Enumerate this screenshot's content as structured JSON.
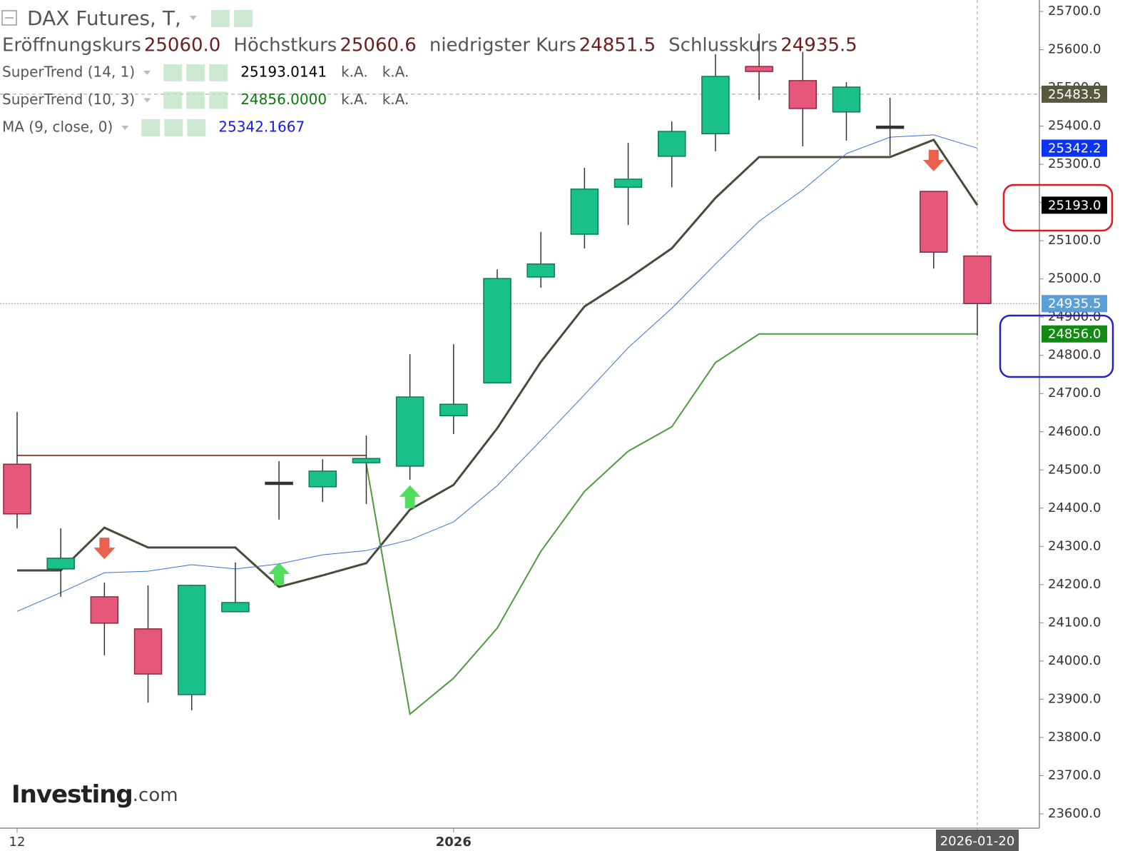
{
  "chart_data": {
    "type": "candlestick",
    "title": "DAX Futures, T,",
    "header": [
      {
        "name": "Eröffnungskurs",
        "value": 25060,
        "label": "25060.0"
      },
      {
        "name": "Höchstkurs",
        "value": 25060.6,
        "label": "25060.6"
      },
      {
        "name": "niedrigster Kurs",
        "value": 24851.5,
        "label": "24851.5"
      },
      {
        "name": "Schlusskurs",
        "value": 24935.5,
        "label": "24935.5"
      }
    ],
    "categories": [
      "12",
      null,
      null,
      null,
      null,
      null,
      null,
      null,
      null,
      null,
      "2026",
      null,
      null,
      null,
      null,
      null,
      null,
      null,
      null,
      null,
      null,
      null,
      "2026-01-20"
    ],
    "open": [
      24515,
      24241,
      24168,
      24084,
      23912,
      24129,
      24465,
      24456,
      24519,
      24510,
      24642,
      24728,
      25005,
      25117,
      25240,
      25321,
      25380,
      25556,
      25519,
      25437,
      25397,
      25229,
      25060
    ],
    "high": [
      24652,
      24347,
      24205,
      24198,
      24200,
      24258,
      24523,
      24528,
      24590,
      24803,
      24829,
      25025,
      25123,
      25291,
      25356,
      25412,
      25588,
      25642,
      25594,
      25515,
      25474,
      25229,
      25060.6
    ],
    "low": [
      24347,
      24168,
      24015,
      23891,
      23871,
      24129,
      24370,
      24416,
      24411,
      24474,
      24594,
      24728,
      24977,
      25080,
      25141,
      25240,
      25334,
      25468,
      25347,
      25362,
      25323,
      25027,
      24851.5
    ],
    "close": [
      24385,
      24269,
      24099,
      23966,
      24198,
      24153,
      24465,
      24497,
      24530,
      24691,
      24672,
      25001,
      25039,
      25235,
      25261,
      25386,
      25530,
      25543,
      25446,
      25502,
      25397,
      25070,
      24935.5
    ],
    "up_color": "#19c08a",
    "down_color": "#e5587c",
    "series": [
      {
        "name": "SuperTrend (14, 1)",
        "color": "#4a4a3a",
        "legend_label": "25193.0141",
        "legend_color": "#000000",
        "extra": [
          "k.A.",
          "k.A."
        ],
        "values": [
          24237,
          24237,
          24349,
          24297,
          24297,
          24297,
          24194,
          24224,
          24256,
          24396,
          24461,
          24609,
          24783,
          24928,
          25001,
          25080,
          25212,
          25319,
          25319,
          25319,
          25319,
          25364,
          25193.0141
        ],
        "signals_up": [
          6,
          9
        ],
        "signals_down": [
          2,
          21
        ]
      },
      {
        "name": "SuperTrend (10, 3)",
        "color": "#4f9a3c",
        "down_color": "#8b4a3a",
        "legend_label": "24856.0000",
        "legend_color": "#0a7a0a",
        "extra": [
          "k.A.",
          "k.A."
        ],
        "values_down": [
          24538,
          24538,
          24538,
          24538,
          24538,
          24538,
          24538,
          24538,
          24538,
          null,
          null,
          null,
          null,
          null,
          null,
          null,
          null,
          null,
          null,
          null,
          null,
          null,
          null
        ],
        "values": [
          null,
          null,
          null,
          null,
          null,
          null,
          null,
          null,
          24516,
          23861,
          23955,
          24086,
          24287,
          24444,
          24549,
          24613,
          24781,
          24856,
          24856,
          24856,
          24856,
          24856,
          24856
        ]
      },
      {
        "name": "MA (9, close, 0)",
        "color": "#3a6fd8",
        "legend_label": "25342.1667",
        "legend_color": "#1a1aee",
        "values": [
          24130,
          24179,
          24231,
          24235,
          24252,
          24241,
          24254,
          24278,
          24289,
          24317,
          24364,
          24459,
          24577,
          24697,
          24820,
          24923,
          25039,
          25151,
          25233,
          25328,
          25371,
          25377,
          25342.1667
        ]
      }
    ],
    "price_tags": [
      {
        "value": 25483.5,
        "label": "25483.5",
        "color": "#58583f",
        "line": "dashed"
      },
      {
        "value": 25342.2,
        "label": "25342.2",
        "color": "#0b33f0"
      },
      {
        "value": 25193.0,
        "label": "25193.0",
        "color": "#000000"
      },
      {
        "value": 24935.5,
        "label": "24935.5",
        "color": "#5a9fd8",
        "line": "dotted"
      },
      {
        "value": 24856.0,
        "label": "24856.0",
        "color": "#138a13"
      }
    ],
    "ylim": [
      23562.5,
      25730
    ],
    "yticks": [
      {
        "value": 23600,
        "label": "23600.0"
      },
      {
        "value": 23700,
        "label": "23700.0"
      },
      {
        "value": 23800,
        "label": "23800.0"
      },
      {
        "value": 23900,
        "label": "23900.0"
      },
      {
        "value": 24000,
        "label": "24000.0"
      },
      {
        "value": 24100,
        "label": "24100.0"
      },
      {
        "value": 24200,
        "label": "24200.0"
      },
      {
        "value": 24300,
        "label": "24300.0"
      },
      {
        "value": 24400,
        "label": "24400.0"
      },
      {
        "value": 24500,
        "label": "24500.0"
      },
      {
        "value": 24600,
        "label": "24600.0"
      },
      {
        "value": 24700,
        "label": "24700.0"
      },
      {
        "value": 24800,
        "label": "24800.0"
      },
      {
        "value": 24900,
        "label": "24900.0"
      },
      {
        "value": 25000,
        "label": "25000.0"
      },
      {
        "value": 25100,
        "label": "25100.0"
      },
      {
        "value": 25200,
        "label": "25200.0"
      },
      {
        "value": 25300,
        "label": "25300.0"
      },
      {
        "value": 25400,
        "label": "25400.0"
      },
      {
        "value": 25500,
        "label": "25500.0"
      },
      {
        "value": 25600,
        "label": "25600.0"
      },
      {
        "value": 25700,
        "label": "25700.0"
      }
    ],
    "crosshair": true,
    "branding": [
      "Investing",
      ".com"
    ]
  }
}
